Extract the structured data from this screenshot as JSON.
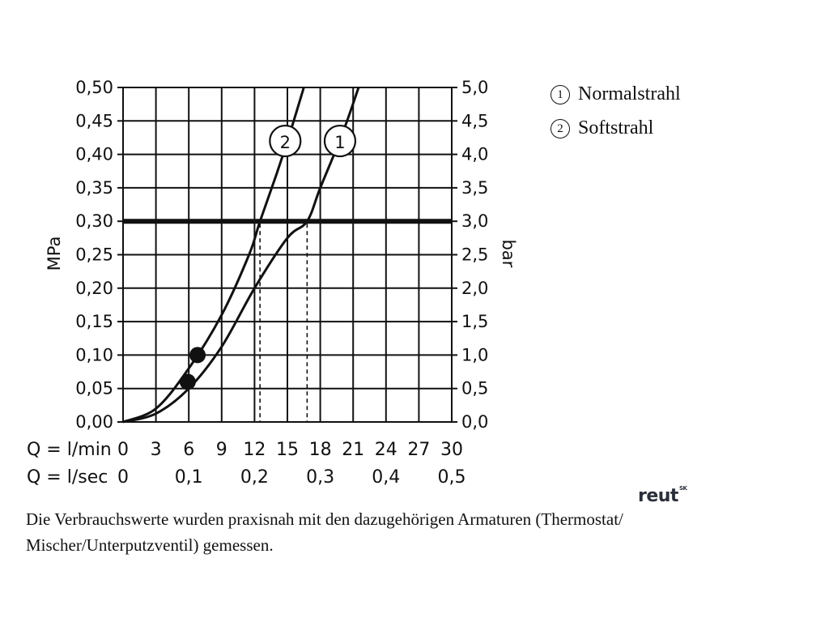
{
  "chart_data": {
    "type": "line",
    "y_left_label": "MPa",
    "y_right_label": "bar",
    "y_left_ticks": [
      "0,00",
      "0,05",
      "0,10",
      "0,15",
      "0,20",
      "0,25",
      "0,30",
      "0,35",
      "0,40",
      "0,45",
      "0,50"
    ],
    "y_right_ticks": [
      "0,0",
      "0,5",
      "1,0",
      "1,5",
      "2,0",
      "2,5",
      "3,0",
      "3,5",
      "4,0",
      "4,5",
      "5,0"
    ],
    "x_lmin_label": "Q = l/min",
    "x_lmin_ticks": [
      "0",
      "3",
      "6",
      "9",
      "12",
      "15",
      "18",
      "21",
      "24",
      "27",
      "30"
    ],
    "x_lsec_label": "Q = l/sec",
    "x_lsec_ticks": [
      "0",
      "0,1",
      "0,2",
      "0,3",
      "0,4",
      "0,5"
    ],
    "xlim": [
      0,
      30
    ],
    "ylim": [
      0,
      0.5
    ],
    "grid": true,
    "series": [
      {
        "name": "1",
        "x": [
          0,
          3,
          6,
          9,
          12,
          15,
          16.8,
          18,
          20,
          21.5
        ],
        "y": [
          0,
          0.0125,
          0.05,
          0.1125,
          0.2,
          0.275,
          0.3,
          0.35,
          0.43,
          0.5
        ]
      },
      {
        "name": "2",
        "x": [
          0,
          3,
          6,
          9,
          11.5,
          12.5,
          14,
          15.2,
          16.5
        ],
        "y": [
          0,
          0.02,
          0.08,
          0.16,
          0.25,
          0.3,
          0.37,
          0.43,
          0.5
        ]
      }
    ],
    "reference_line_y": 0.3,
    "markers": [
      {
        "x": 6.8,
        "y": 0.1
      },
      {
        "x": 5.9,
        "y": 0.06
      }
    ],
    "drop_lines": [
      {
        "x": 12.5,
        "y": 0.3
      },
      {
        "x": 16.8,
        "y": 0.3
      }
    ]
  },
  "legend": {
    "items": [
      {
        "num": "1",
        "label": "Normalstrahl"
      },
      {
        "num": "2",
        "label": "Softstrahl"
      }
    ]
  },
  "footnote": "Die Verbrauchswerte wurden praxisnah mit den dazugehörigen Armaturen (Thermostat/ Mischer/Unterputzventil) gemessen.",
  "logo": {
    "text": "reut",
    "sup": "SK"
  }
}
